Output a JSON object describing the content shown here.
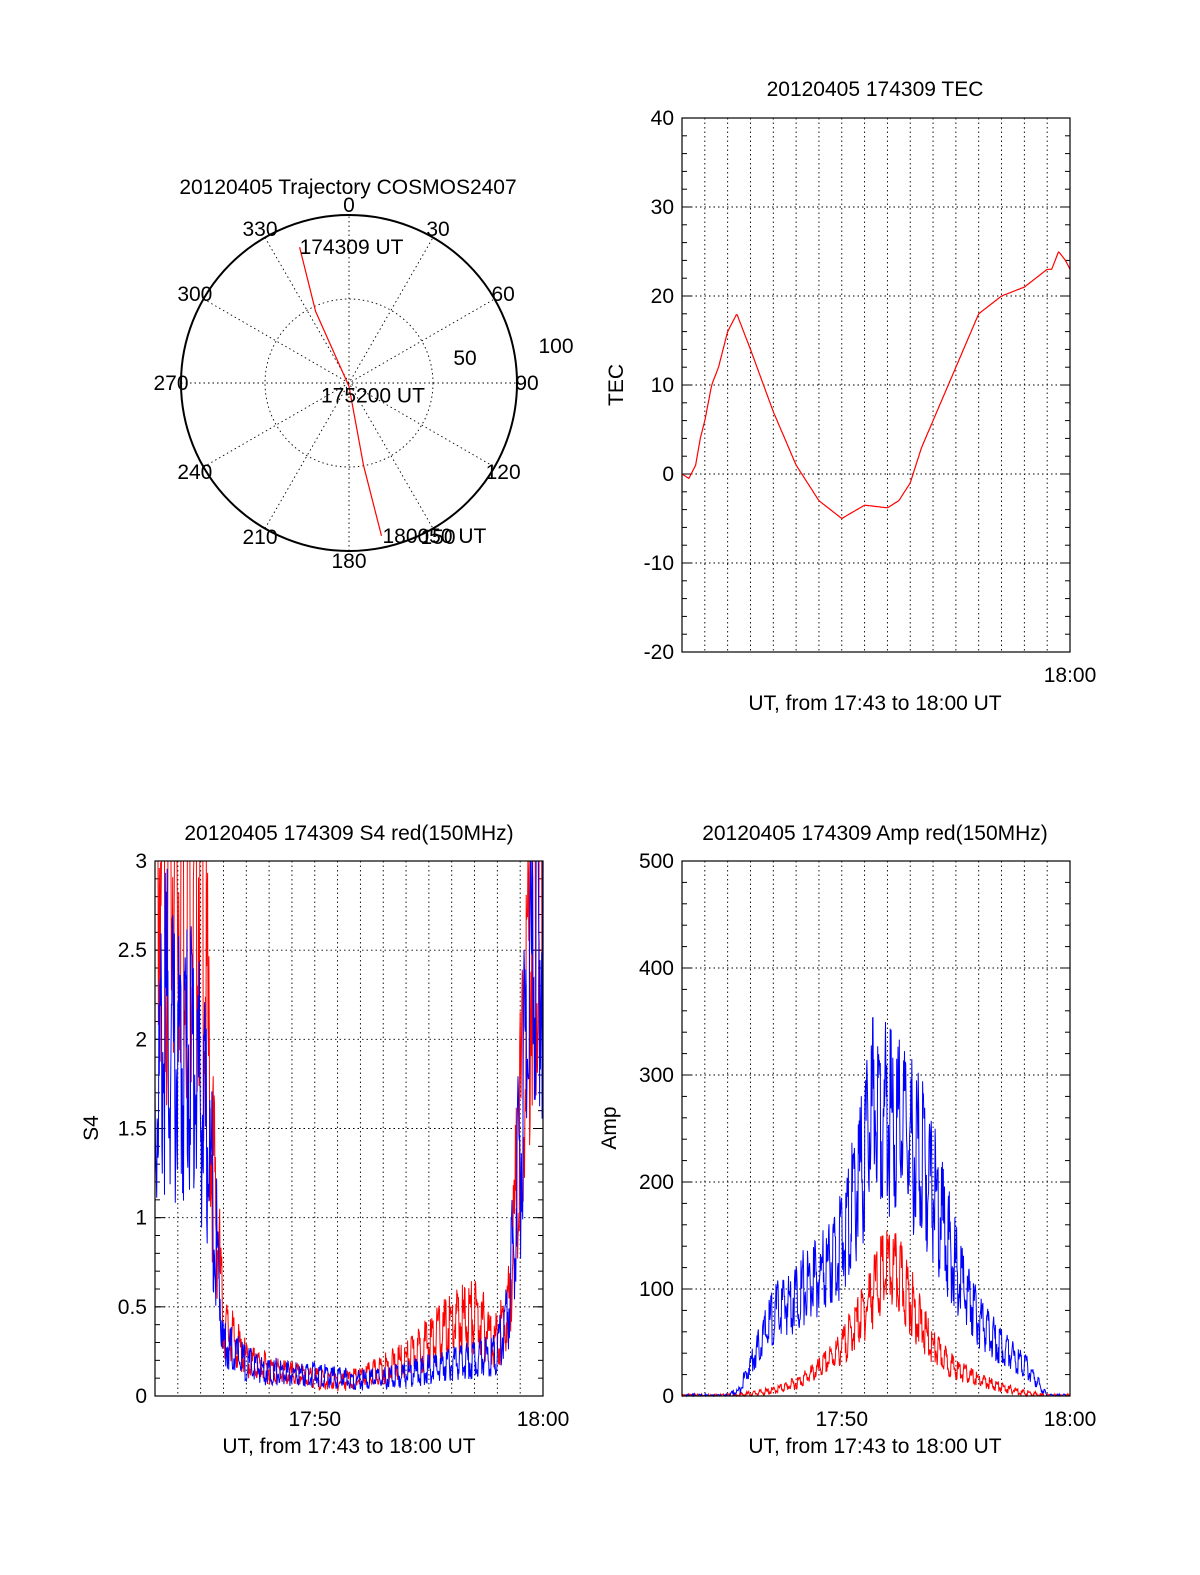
{
  "chart_data": [
    {
      "type": "polar",
      "title": "20120405 Trajectory COSMOS2407",
      "azimuth_labels": [
        "0",
        "30",
        "60",
        "90",
        "120",
        "150",
        "180",
        "210",
        "240",
        "270",
        "300",
        "330"
      ],
      "elevation_labels": [
        "50",
        "100"
      ],
      "labels": [
        "174309 UT",
        "175200 UT",
        "180050 UT"
      ],
      "trajectory": {
        "color": "#ff0000",
        "points": [
          {
            "az": 340,
            "r": 0.86,
            "time": "174309 UT"
          },
          {
            "az": 335,
            "r": 0.47
          },
          {
            "az": 180,
            "r": 0.02,
            "time": "175200 UT"
          },
          {
            "az": 170,
            "r": 0.5
          },
          {
            "az": 168,
            "r": 0.93,
            "time": "180050 UT"
          }
        ]
      }
    },
    {
      "type": "line",
      "title": "20120405 174309 TEC",
      "xlabel": "UT, from 17:43 to 18:00 UT",
      "ylabel": "TEC",
      "x_ticks": [
        "18:00"
      ],
      "xlim": [
        0,
        17
      ],
      "ylim": [
        -20,
        40
      ],
      "y_ticks": [
        "-20",
        "-10",
        "0",
        "10",
        "20",
        "30",
        "40"
      ],
      "grid": true,
      "series": [
        {
          "color": "#ff0000",
          "x": [
            0,
            0.3,
            0.6,
            0.8,
            1.0,
            1.3,
            1.6,
            2.0,
            2.4,
            3.0,
            4.0,
            5.0,
            6.0,
            7.0,
            8.0,
            9.0,
            9.5,
            10.0,
            10.5,
            11.0,
            11.5,
            12.0,
            12.5,
            13.0,
            14.0,
            15.0,
            16.0,
            16.2,
            16.5,
            16.8,
            17.0
          ],
          "y": [
            0,
            -0.5,
            1,
            4,
            6,
            10,
            12,
            16,
            18,
            14,
            7,
            1,
            -3,
            -5,
            -3.5,
            -3.8,
            -3,
            -1,
            3,
            6,
            9,
            12,
            15,
            18,
            20,
            21,
            23,
            23,
            25,
            24,
            23
          ]
        }
      ]
    },
    {
      "type": "line",
      "title": "20120405 174309 S4 red(150MHz)",
      "xlabel": "UT, from 17:43 to 18:00 UT",
      "ylabel": "S4",
      "x_ticks": [
        "17:50",
        "18:00"
      ],
      "xlim": [
        0,
        17
      ],
      "ylim": [
        0,
        3
      ],
      "y_ticks": [
        "0",
        "0.5",
        "1",
        "1.5",
        "2",
        "2.5",
        "3"
      ],
      "grid": true,
      "series": [
        {
          "color": "#ff0000",
          "x": [
            0,
            0.5,
            1.0,
            1.5,
            2.0,
            2.5,
            3.0,
            4.0,
            5.0,
            6.0,
            7.0,
            8.0,
            9.0,
            10.0,
            11.0,
            12.0,
            13.0,
            14.0,
            15.0,
            15.5,
            16.0,
            16.5,
            17.0
          ],
          "y": [
            3,
            3,
            3,
            3,
            3,
            1.4,
            0.4,
            0.2,
            0.15,
            0.12,
            0.1,
            0.08,
            0.1,
            0.15,
            0.2,
            0.3,
            0.4,
            0.45,
            0.3,
            0.5,
            1.5,
            2.8,
            3
          ]
        },
        {
          "color": "#0000ff",
          "x": [
            0,
            0.5,
            1.0,
            1.5,
            2.0,
            2.5,
            3.0,
            4.0,
            5.0,
            6.0,
            7.0,
            8.0,
            9.0,
            10.0,
            11.0,
            12.0,
            13.0,
            14.0,
            15.0,
            15.5,
            16.0,
            16.5,
            17.0
          ],
          "y": [
            1.6,
            2.1,
            1.8,
            2.0,
            1.7,
            1.2,
            0.3,
            0.18,
            0.14,
            0.12,
            0.12,
            0.1,
            0.09,
            0.1,
            0.12,
            0.15,
            0.18,
            0.2,
            0.25,
            0.5,
            1.4,
            2.4,
            2.6
          ]
        }
      ]
    },
    {
      "type": "line",
      "title": "20120405 174309 Amp red(150MHz)",
      "xlabel": "UT, from 17:43 to 18:00 UT",
      "ylabel": "Amp",
      "x_ticks": [
        "17:50",
        "18:00"
      ],
      "xlim": [
        0,
        17
      ],
      "ylim": [
        0,
        500
      ],
      "y_ticks": [
        "0",
        "100",
        "200",
        "300",
        "400",
        "500"
      ],
      "grid": true,
      "series": [
        {
          "color": "#ff0000",
          "x": [
            0,
            2,
            3,
            4,
            5,
            6,
            7,
            8,
            8.5,
            9,
            9.5,
            10,
            10.5,
            11,
            12,
            13,
            14,
            15,
            16,
            17
          ],
          "y": [
            0,
            0,
            2,
            5,
            12,
            25,
            45,
            80,
            105,
            118,
            110,
            90,
            65,
            45,
            25,
            15,
            8,
            3,
            0,
            0
          ]
        },
        {
          "color": "#0000ff",
          "x": [
            0,
            2,
            2.5,
            3,
            4,
            5,
            6,
            7,
            8,
            8.5,
            9,
            9.5,
            10,
            10.5,
            11,
            12,
            13,
            14,
            15,
            15.5,
            16,
            17
          ],
          "y": [
            0,
            0,
            5,
            30,
            75,
            95,
            110,
            140,
            220,
            285,
            260,
            250,
            240,
            220,
            190,
            120,
            70,
            45,
            30,
            15,
            0,
            0
          ]
        }
      ]
    }
  ]
}
